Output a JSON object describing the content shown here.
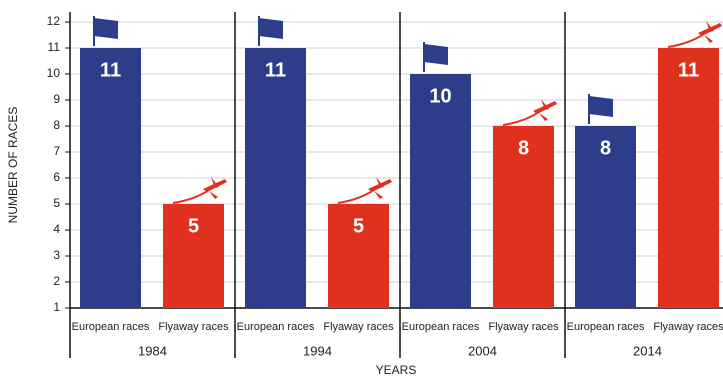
{
  "chart_data": {
    "type": "grouped-bar",
    "y_label": "NUMBER OF RACES",
    "x_label": "YEARS",
    "categories": [
      "1984",
      "1994",
      "2004",
      "2014"
    ],
    "series": [
      {
        "name": "European races",
        "color": "#2e3d8a",
        "values": [
          11,
          11,
          10,
          8
        ]
      },
      {
        "name": "Flyaway races",
        "color": "#e0301e",
        "values": [
          5,
          5,
          8,
          11
        ]
      }
    ],
    "ylim": [
      1,
      12
    ],
    "yticks": [
      1,
      2,
      3,
      4,
      5,
      6,
      7,
      8,
      9,
      10,
      11,
      12
    ],
    "grid": true
  }
}
